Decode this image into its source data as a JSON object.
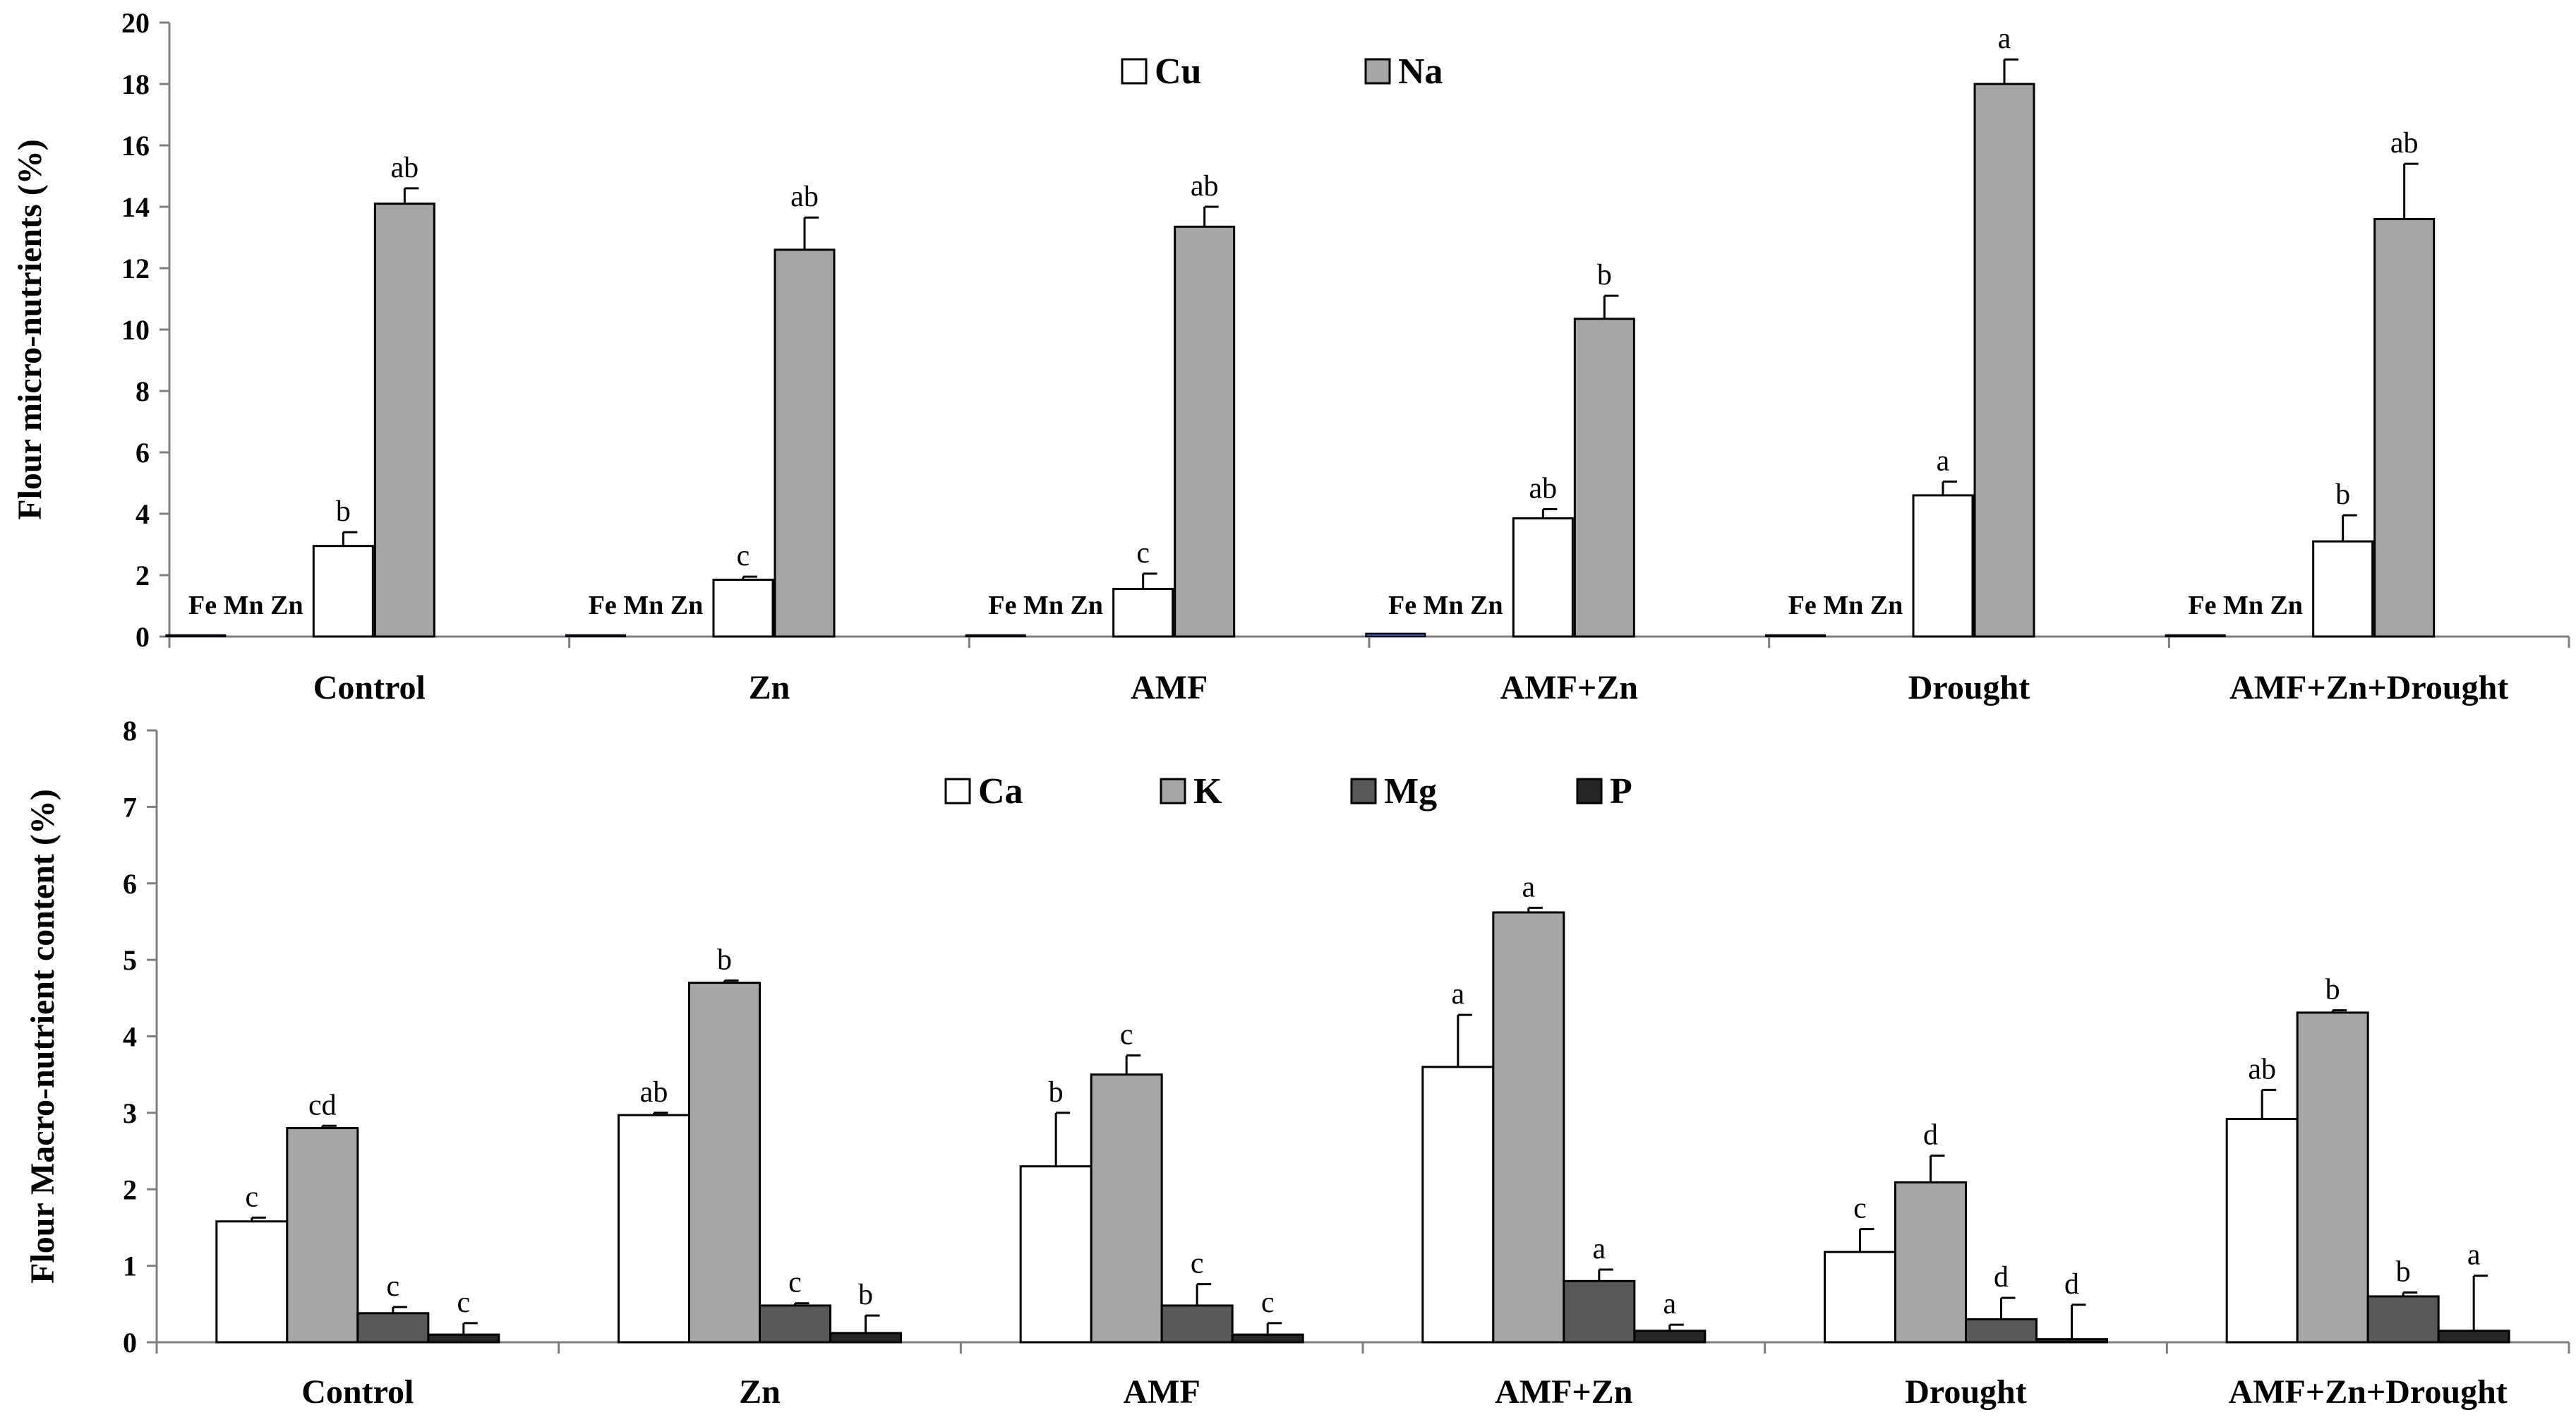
{
  "chart_data": [
    {
      "type": "bar",
      "ylabel": "Flour micro-nutrients (%)",
      "ylim": [
        0,
        20
      ],
      "yticks": [
        0,
        2,
        4,
        6,
        8,
        10,
        12,
        14,
        16,
        18,
        20
      ],
      "categories": [
        "Control",
        "Zn",
        "AMF",
        "AMF+Zn",
        "Drought",
        "AMF+Zn+Drought"
      ],
      "minor_series_labels": [
        "Fe",
        "Mn",
        "Zn"
      ],
      "minor_series_values": [
        0.05,
        0.05,
        0.05,
        0.1,
        0.05,
        0.05
      ],
      "series": [
        {
          "name": "Cu",
          "color": "#ffffff",
          "values": [
            2.95,
            1.85,
            1.55,
            3.85,
            4.6,
            3.1
          ],
          "errors": [
            0.45,
            0.1,
            0.5,
            0.3,
            0.45,
            0.85
          ],
          "letters": [
            "b",
            "c",
            "c",
            "ab",
            "a",
            "b"
          ]
        },
        {
          "name": "Na",
          "color": "#a6a6a6",
          "values": [
            14.1,
            12.6,
            13.35,
            10.35,
            18.0,
            13.6
          ],
          "errors": [
            0.5,
            1.05,
            0.65,
            0.75,
            0.8,
            1.8
          ],
          "letters": [
            "ab",
            "ab",
            "ab",
            "b",
            "a",
            "ab"
          ]
        }
      ]
    },
    {
      "type": "bar",
      "ylabel": "Flour Macro-nutrient content (%)",
      "ylim": [
        0,
        8
      ],
      "yticks": [
        0,
        1,
        2,
        3,
        4,
        5,
        6,
        7,
        8
      ],
      "categories": [
        "Control",
        "Zn",
        "AMF",
        "AMF+Zn",
        "Drought",
        "AMF+Zn+Drought"
      ],
      "series": [
        {
          "name": "Ca",
          "color": "#ffffff",
          "values": [
            1.58,
            2.97,
            2.3,
            3.6,
            1.18,
            2.92
          ],
          "errors": [
            0.05,
            0.03,
            0.7,
            0.68,
            0.3,
            0.38
          ],
          "letters": [
            "c",
            "ab",
            "b",
            "a",
            "c",
            "ab"
          ]
        },
        {
          "name": "K",
          "color": "#a6a6a6",
          "values": [
            2.8,
            4.7,
            3.5,
            5.62,
            2.09,
            4.31
          ],
          "errors": [
            0.03,
            0.03,
            0.25,
            0.06,
            0.35,
            0.03
          ],
          "letters": [
            "cd",
            "b",
            "c",
            "a",
            "d",
            "b"
          ]
        },
        {
          "name": "Mg",
          "color": "#595959",
          "values": [
            0.38,
            0.48,
            0.48,
            0.8,
            0.3,
            0.6
          ],
          "errors": [
            0.08,
            0.03,
            0.28,
            0.15,
            0.28,
            0.05
          ],
          "letters": [
            "c",
            "c",
            "c",
            "a",
            "d",
            "b"
          ]
        },
        {
          "name": "P",
          "color": "#262626",
          "values": [
            0.1,
            0.12,
            0.1,
            0.15,
            0.04,
            0.15
          ],
          "errors": [
            0.15,
            0.23,
            0.15,
            0.08,
            0.45,
            0.72
          ],
          "letters": [
            "c",
            "b",
            "c",
            "a",
            "d",
            "a"
          ]
        }
      ]
    }
  ]
}
